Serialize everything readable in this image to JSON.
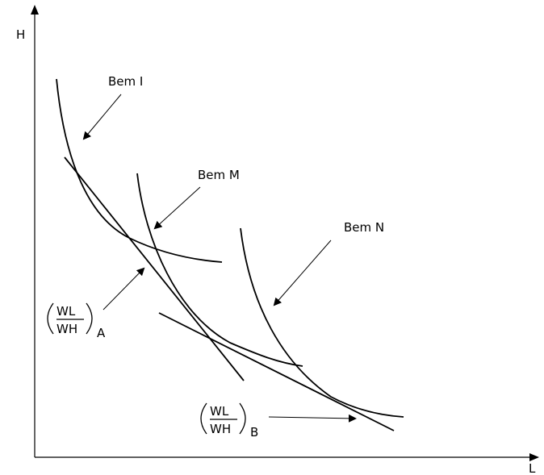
{
  "axes": {
    "y_label": "H",
    "x_label": "L"
  },
  "curves": {
    "bem_i": "Bem I",
    "bem_m": "Bem M",
    "bem_n": "Bem N"
  },
  "ratio_a": {
    "numerator": "WL",
    "denominator": "WH",
    "subscript": "A"
  },
  "ratio_b": {
    "numerator": "WL",
    "denominator": "WH",
    "subscript": "B"
  }
}
